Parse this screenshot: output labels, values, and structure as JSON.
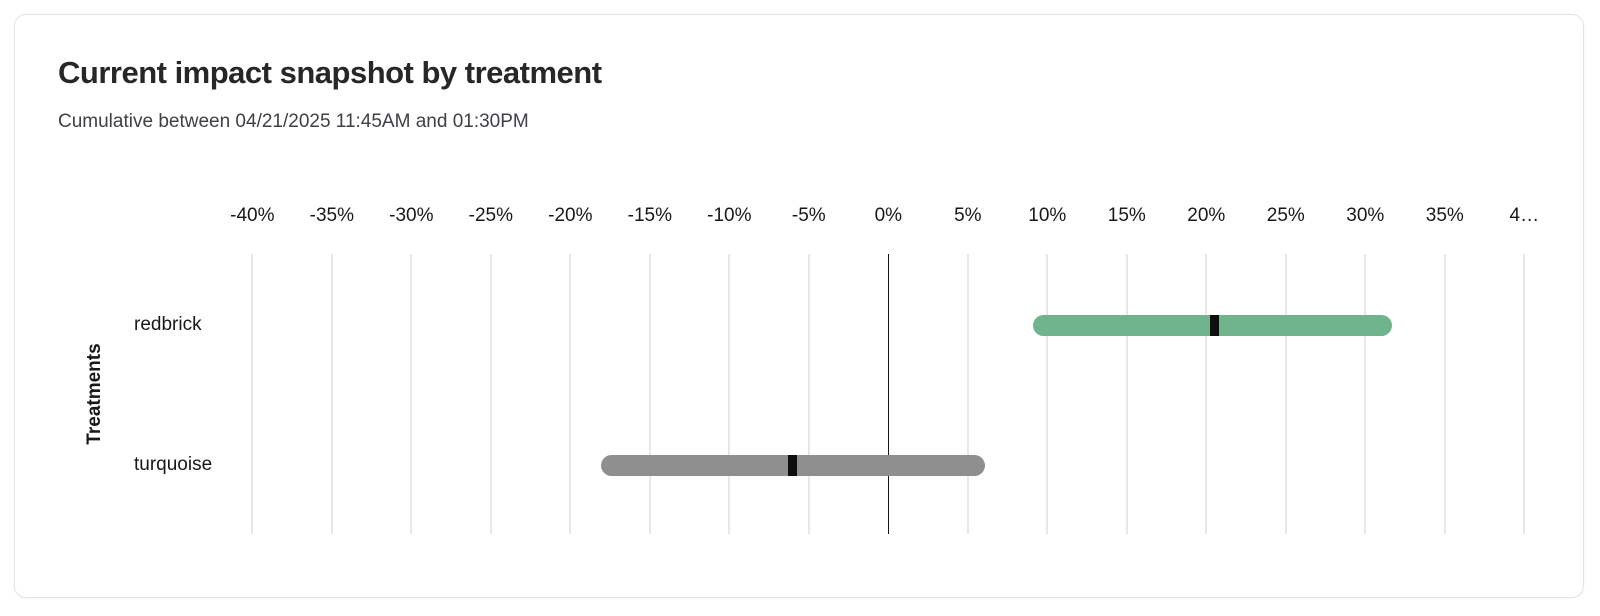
{
  "card": {
    "title": "Current impact snapshot by treatment",
    "subtitle": "Cumulative between 04/21/2025 11:45AM and 01:30PM"
  },
  "chart_data": {
    "type": "bar",
    "variant": "horizontal-range-bar-with-midpoint-marker",
    "title": "Current impact snapshot by treatment",
    "subtitle": "Cumulative between 04/21/2025 11:45AM and 01:30PM",
    "xlabel": "",
    "ylabel": "Treatments",
    "xlim": [
      -40,
      40
    ],
    "x_tick_format": "percent",
    "grid": true,
    "zero_line": true,
    "legend": "none",
    "x_ticks": [
      -40,
      -35,
      -30,
      -25,
      -20,
      -15,
      -10,
      -5,
      0,
      5,
      10,
      15,
      20,
      25,
      30,
      35,
      40
    ],
    "x_tick_labels": [
      "-40%",
      "-35%",
      "-30%",
      "-25%",
      "-20%",
      "-15%",
      "-10%",
      "-5%",
      "0%",
      "5%",
      "10%",
      "15%",
      "20%",
      "25%",
      "30%",
      "35%",
      "4…"
    ],
    "categories": [
      "redbrick",
      "turquoise"
    ],
    "series": [
      {
        "name": "redbrick",
        "low": 9.1,
        "mid": 20.5,
        "high": 31.7,
        "bar_color": "#6fb48d"
      },
      {
        "name": "turquoise",
        "low": -18.1,
        "mid": -6.0,
        "high": 6.1,
        "bar_color": "#8f8f8f"
      }
    ],
    "marker_color": "#0e0e0e",
    "colors": {
      "gridline": "#e7e7e7",
      "zero_line": "#141414",
      "title_text": "#27272a",
      "subtitle_text": "#3f3f46",
      "axis_text": "#18181b"
    }
  }
}
